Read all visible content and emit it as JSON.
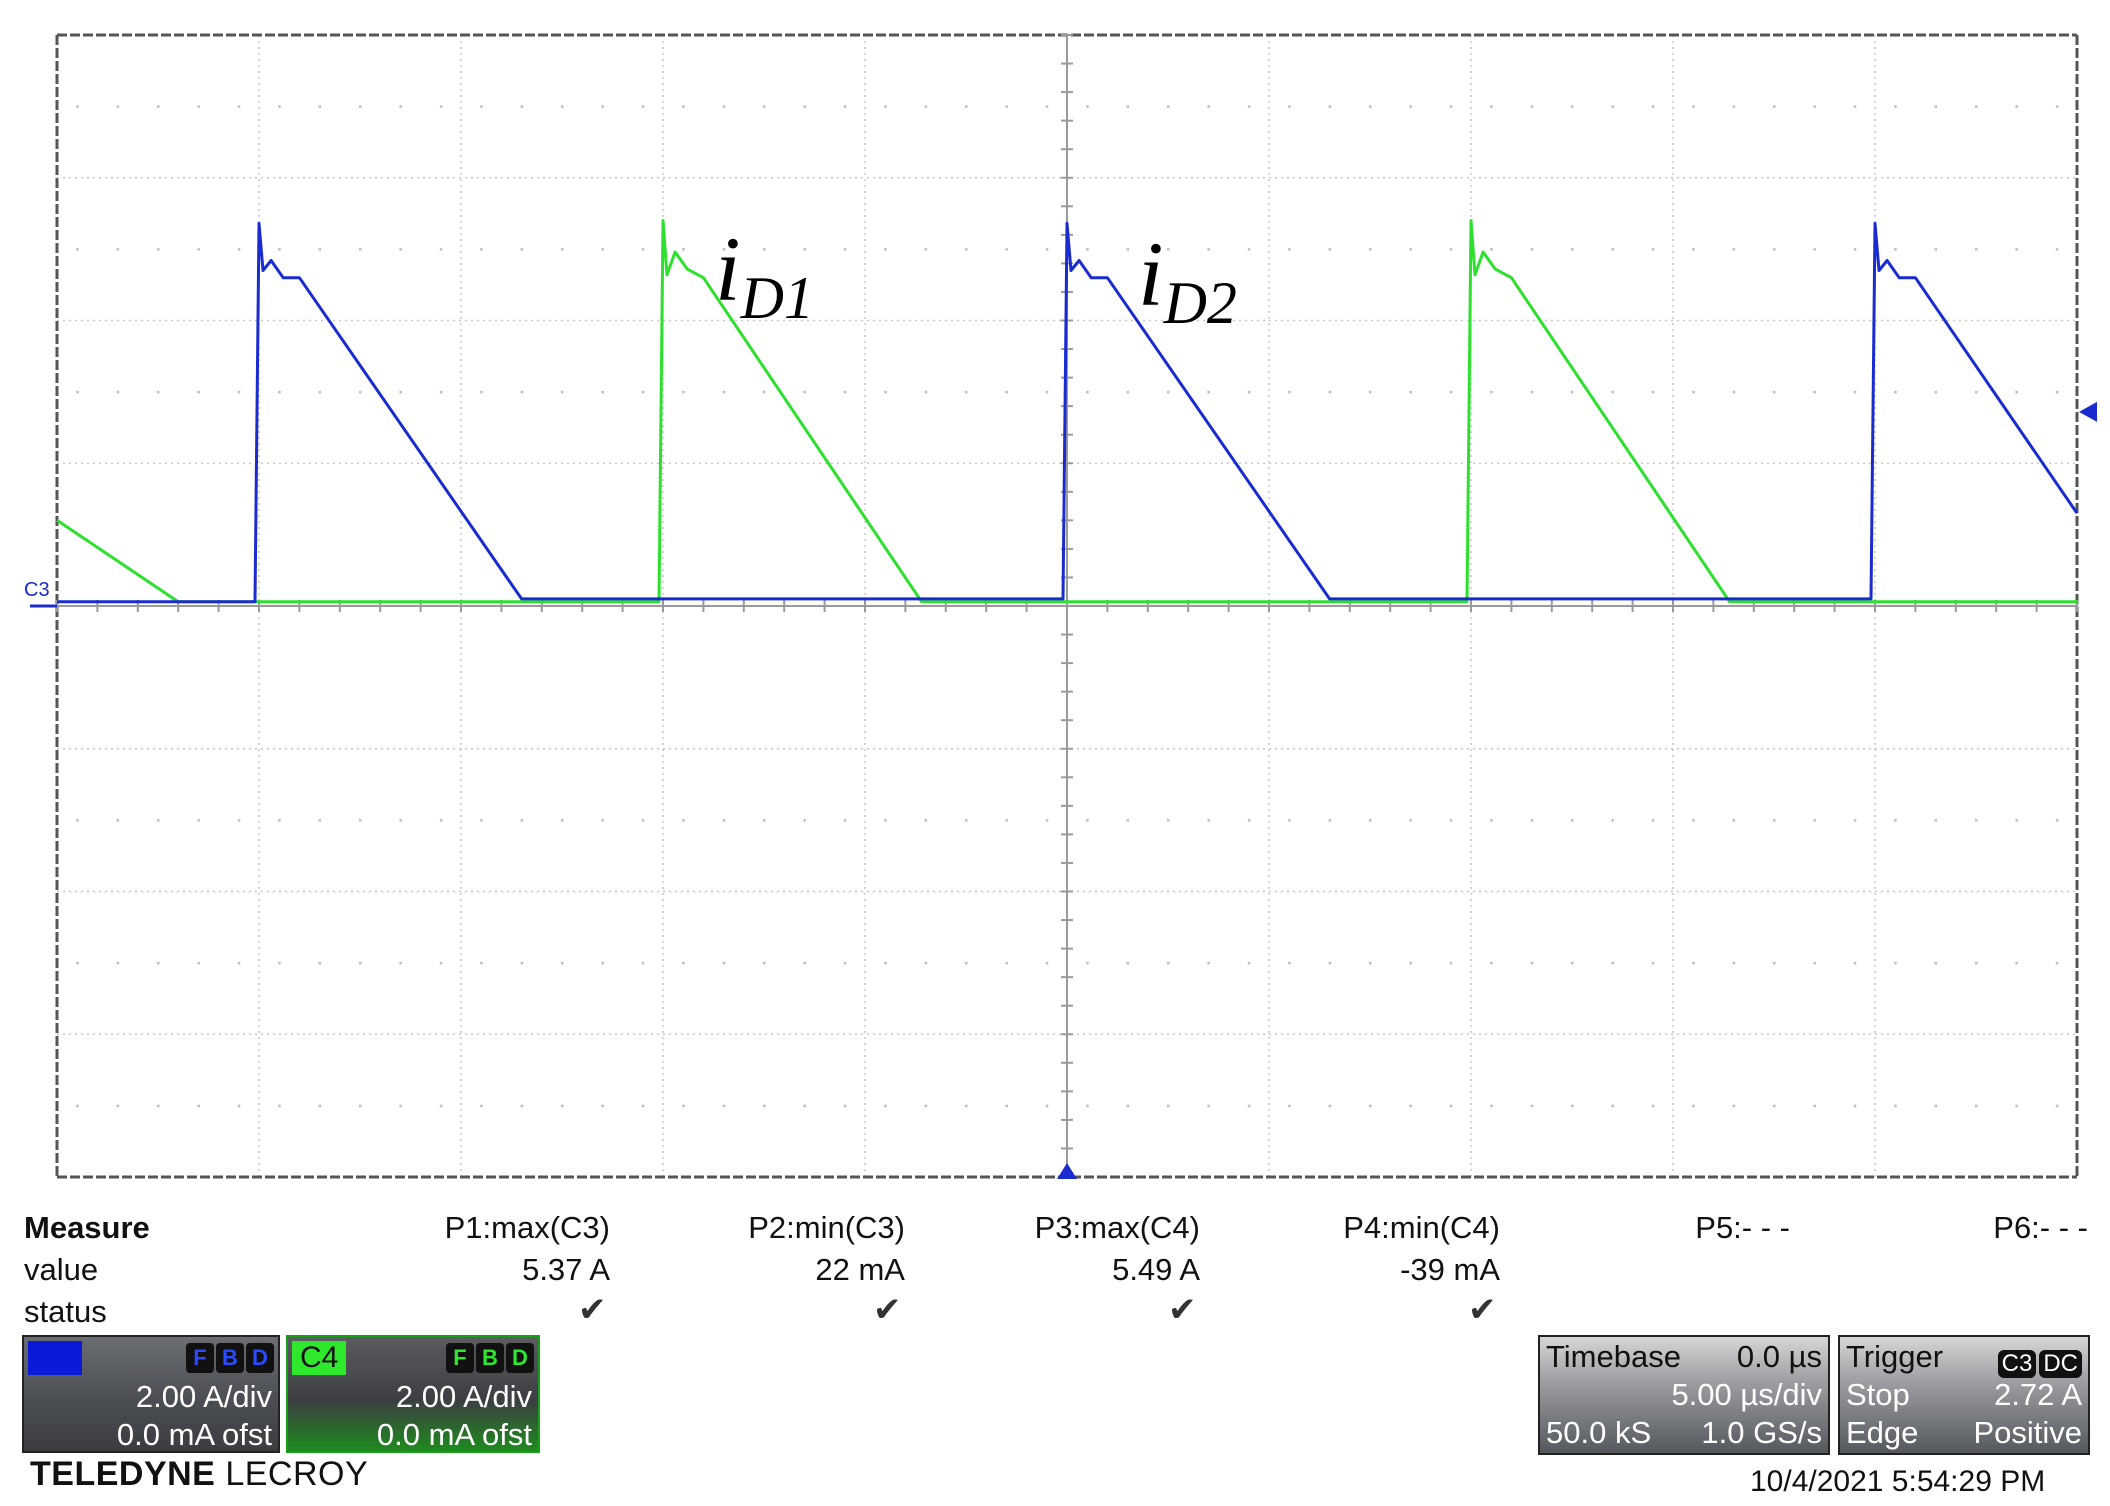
{
  "chart_data": {
    "type": "line",
    "instrument": "Teledyne LeCroy oscilloscope",
    "timebase": {
      "per_div": "5.00 µs/div",
      "delay": "0.0 µs"
    },
    "x_range_us": [
      0,
      50
    ],
    "y_range_div": [
      -4,
      4
    ],
    "grid": {
      "x_divisions": 10,
      "y_divisions": 8,
      "visible": true
    },
    "series": [
      {
        "name": "i_D1",
        "channel": "C4",
        "color": "#2ee02e",
        "x": [
          0,
          3,
          14.9,
          15,
          15.1,
          15.3,
          15.6,
          16,
          21.4,
          24.5,
          34.9,
          35,
          35.1,
          35.3,
          35.6,
          36,
          41.4,
          44.5,
          50
        ],
        "y": [
          0.6,
          0.03,
          0.03,
          2.7,
          2.32,
          2.48,
          2.36,
          2.3,
          0.03,
          0.03,
          0.03,
          2.7,
          2.32,
          2.48,
          2.36,
          2.3,
          0.03,
          0.03,
          0.03
        ]
      },
      {
        "name": "i_D2",
        "channel": "C3",
        "color": "#1a2bd0",
        "x": [
          0,
          4.9,
          5,
          5.1,
          5.3,
          5.6,
          6,
          11.5,
          14.9,
          24.9,
          25,
          25.1,
          25.3,
          25.6,
          26,
          31.5,
          34.9,
          44.9,
          45,
          45.1,
          45.3,
          45.6,
          46,
          50
        ],
        "y": [
          0.03,
          0.03,
          2.68,
          2.35,
          2.42,
          2.3,
          2.3,
          0.05,
          0.05,
          0.05,
          2.68,
          2.35,
          2.42,
          2.3,
          2.3,
          0.05,
          0.05,
          0.05,
          2.68,
          2.35,
          2.42,
          2.3,
          2.3,
          0.65
        ]
      }
    ],
    "annotations": [
      {
        "base": "i",
        "sub": "D1",
        "color": "#000000"
      },
      {
        "base": "i",
        "sub": "D2",
        "color": "#000000"
      }
    ],
    "ground_marker_label": "C3",
    "trigger_level_marker": "right",
    "trigger_position_marker": "bottom-center"
  },
  "measure": {
    "header": "Measure",
    "row_labels": [
      "value",
      "status"
    ],
    "params": [
      {
        "label": "P1:max(C3)",
        "value": "5.37 A",
        "status": "✔"
      },
      {
        "label": "P2:min(C3)",
        "value": "22 mA",
        "status": "✔"
      },
      {
        "label": "P3:max(C4)",
        "value": "5.49 A",
        "status": "✔"
      },
      {
        "label": "P4:min(C4)",
        "value": "-39 mA",
        "status": "✔"
      },
      {
        "label": "P5:- - -",
        "value": "",
        "status": ""
      },
      {
        "label": "P6:- - -",
        "value": "",
        "status": ""
      }
    ]
  },
  "channels": [
    {
      "name": "C3",
      "scale": "2.00 A/div",
      "offset": "0.0 mA ofst",
      "flags": [
        "F",
        "B",
        "D"
      ]
    },
    {
      "name": "C4",
      "scale": "2.00 A/div",
      "offset": "0.0 mA ofst",
      "flags": [
        "F",
        "B",
        "D"
      ]
    }
  ],
  "timebase": {
    "label": "Timebase",
    "delay": "0.0 µs",
    "per_div": "5.00 µs/div",
    "samples": "50.0 kS",
    "rate": "1.0 GS/s"
  },
  "trigger": {
    "label": "Trigger",
    "source": "C3",
    "coupling": "DC",
    "mode": "Stop",
    "level": "2.72 A",
    "type": "Edge",
    "slope": "Positive"
  },
  "brand": {
    "bold": "TELEDYNE",
    "light": "LECROY"
  },
  "timestamp": "10/4/2021 5:54:29 PM"
}
